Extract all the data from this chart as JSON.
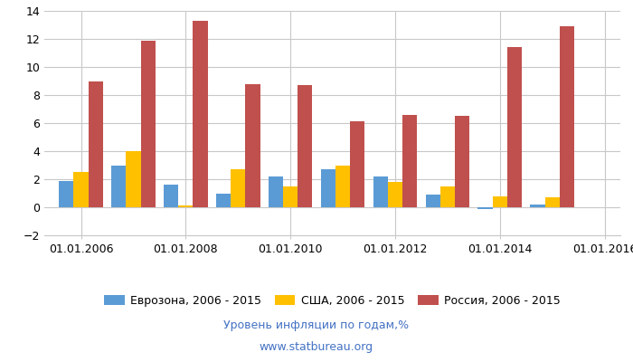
{
  "years": [
    2006,
    2007,
    2008,
    2009,
    2010,
    2011,
    2012,
    2013,
    2014,
    2015
  ],
  "eurozone": [
    1.9,
    3.0,
    1.6,
    1.0,
    2.2,
    2.7,
    2.2,
    0.9,
    -0.1,
    0.2
  ],
  "usa": [
    2.5,
    4.0,
    0.1,
    2.7,
    1.5,
    3.0,
    1.8,
    1.5,
    0.8,
    0.7
  ],
  "russia": [
    9.0,
    11.9,
    13.3,
    8.8,
    8.7,
    6.1,
    6.6,
    6.5,
    11.4,
    12.9
  ],
  "color_eurozone": "#5b9bd5",
  "color_usa": "#ffc000",
  "color_russia": "#c0504d",
  "legend_eurozone": "Еврозона, 2006 - 2015",
  "legend_usa": "США, 2006 - 2015",
  "legend_russia": "Россия, 2006 - 2015",
  "ylim": [
    -2,
    14
  ],
  "yticks": [
    -2,
    0,
    2,
    4,
    6,
    8,
    10,
    12,
    14
  ],
  "subtitle1": "Уровень инфляции по годам,%",
  "subtitle2": "www.statbureau.org",
  "background_color": "#ffffff",
  "grid_color": "#c8c8c8",
  "bar_width": 0.28,
  "xtick_labels": [
    "01.01.2006",
    "01.01.2008",
    "01.01.2010",
    "01.01.2012",
    "01.01.2014",
    "01.01.2016"
  ],
  "xtick_positions": [
    2006,
    2008,
    2010,
    2012,
    2014,
    2016
  ]
}
